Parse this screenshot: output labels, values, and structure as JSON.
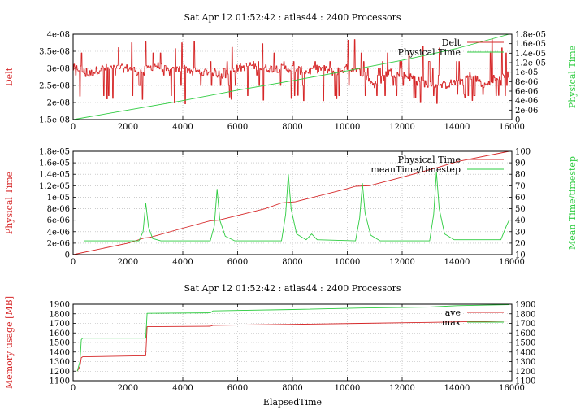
{
  "chart_data": [
    {
      "type": "line",
      "title": "Sat Apr 12 01:52:42 : atlas44 : 2400 Processors",
      "xlabel": "",
      "xlim": [
        0,
        16000
      ],
      "xticks": [
        0,
        2000,
        4000,
        6000,
        8000,
        10000,
        12000,
        14000,
        16000
      ],
      "ylabel": "Delt",
      "ylim": [
        1.5e-08,
        4e-08
      ],
      "yticks": [
        "1.5e-08",
        "2e-08",
        "2.5e-08",
        "3e-08",
        "3.5e-08",
        "4e-08"
      ],
      "ylabel2": "Physical Time",
      "ylim2": [
        0,
        1.8e-05
      ],
      "yticks2": [
        "0",
        "2e-06",
        "4e-06",
        "6e-06",
        "8e-06",
        "1e-05",
        "1.2e-05",
        "1.4e-05",
        "1.6e-05",
        "1.8e-05"
      ],
      "grid": true,
      "legend": "top-right",
      "colors": {
        "delt": "#d62728",
        "physical": "#2ecc40"
      },
      "series": [
        {
          "name": "Delt",
          "axis": "left",
          "style": "noisy-steps",
          "x": [
            0,
            250,
            500,
            1000,
            1500,
            2000,
            2500,
            3000,
            3500,
            4000,
            4500,
            5000,
            5500,
            6000,
            6500,
            7000,
            7500,
            8000,
            8500,
            9000,
            9500,
            10000,
            10500,
            11000,
            11500,
            12000,
            12500,
            13000,
            13500,
            14000,
            14500,
            15000,
            15500,
            15900
          ],
          "y": [
            3e-08,
            3e-08,
            2.8e-08,
            3e-08,
            3e-08,
            3e-08,
            2.9e-08,
            3.1e-08,
            2.9e-08,
            3e-08,
            2.9e-08,
            2.9e-08,
            2.8e-08,
            3e-08,
            3.1e-08,
            3e-08,
            3e-08,
            3e-08,
            2.9e-08,
            3e-08,
            2.9e-08,
            3e-08,
            2.9e-08,
            2.5e-08,
            2.9e-08,
            2.8e-08,
            2.7e-08,
            2.5e-08,
            2.5e-08,
            2.6e-08,
            2.8e-08,
            2.5e-08,
            2.7e-08,
            2.8e-08
          ],
          "range_min": 1.95e-08,
          "range_max": 3.85e-08
        },
        {
          "name": "Physical Time",
          "axis": "right",
          "x": [
            0,
            2000,
            4000,
            6000,
            8000,
            10000,
            12000,
            14000,
            15900
          ],
          "y": [
            0,
            2e-06,
            4e-06,
            6.2e-06,
            8.2e-06,
            1.03e-05,
            1.25e-05,
            1.5e-05,
            1.8e-05
          ]
        }
      ]
    },
    {
      "type": "line",
      "title": "",
      "xlabel": "",
      "xlim": [
        0,
        16000
      ],
      "xticks": [
        0,
        2000,
        4000,
        6000,
        8000,
        10000,
        12000,
        14000,
        16000
      ],
      "ylabel": "Physical Time",
      "ylim": [
        0,
        1.8e-05
      ],
      "yticks": [
        "0",
        "2e-06",
        "4e-06",
        "6e-06",
        "8e-06",
        "1e-05",
        "1.2e-05",
        "1.4e-05",
        "1.6e-05",
        "1.8e-05"
      ],
      "ylabel2": "Mean Time/timestep",
      "ylim2": [
        10,
        100
      ],
      "yticks2": [
        "10",
        "20",
        "30",
        "40",
        "50",
        "60",
        "70",
        "80",
        "90",
        "100"
      ],
      "grid": true,
      "legend": "top-right",
      "colors": {
        "physical": "#d62728",
        "mean": "#2ecc40"
      },
      "series": [
        {
          "name": "Physical Time",
          "axis": "left",
          "x": [
            0,
            2000,
            2600,
            2800,
            4000,
            5000,
            5300,
            7000,
            7600,
            8100,
            10000,
            10300,
            10800,
            12000,
            13000,
            13300,
            14000,
            15900
          ],
          "y": [
            0,
            2e-06,
            2.9e-06,
            3e-06,
            4.6e-06,
            5.9e-06,
            6e-06,
            8e-06,
            9e-06,
            9.2e-06,
            1.15e-05,
            1.19e-05,
            1.2e-05,
            1.35e-05,
            1.48e-05,
            1.52e-05,
            1.62e-05,
            1.8e-05
          ]
        },
        {
          "name": "meanTime/timestep",
          "axis": "right",
          "x": [
            400,
            2400,
            2550,
            2650,
            2750,
            2900,
            3200,
            5000,
            5150,
            5250,
            5350,
            5550,
            5900,
            7600,
            7750,
            7850,
            7950,
            8150,
            8500,
            8700,
            8900,
            10300,
            10450,
            10550,
            10650,
            10850,
            11200,
            13000,
            13150,
            13250,
            13350,
            13550,
            13900,
            15600,
            15800,
            15900
          ],
          "y": [
            22,
            22,
            30,
            55,
            34,
            24,
            22,
            22,
            35,
            67,
            40,
            26,
            22,
            22,
            45,
            80,
            50,
            28,
            23,
            28,
            23,
            22,
            42,
            72,
            46,
            27,
            22,
            22,
            45,
            82,
            50,
            28,
            23,
            23,
            35,
            40
          ]
        }
      ]
    },
    {
      "type": "line",
      "title": "Sat Apr 12 01:52:42 : atlas44 : 2400 Processors",
      "xlabel": "ElapsedTime",
      "xlim": [
        0,
        16000
      ],
      "xticks": [
        0,
        2000,
        4000,
        6000,
        8000,
        10000,
        12000,
        14000,
        16000
      ],
      "ylabel": "Memory usage [MB]",
      "ylim": [
        1100,
        1900
      ],
      "yticks": [
        "1100",
        "1200",
        "1300",
        "1400",
        "1500",
        "1600",
        "1700",
        "1800",
        "1900"
      ],
      "ylabel2": "",
      "ylim2": [
        1100,
        1900
      ],
      "yticks2": [
        "1100",
        "1200",
        "1300",
        "1400",
        "1500",
        "1600",
        "1700",
        "1800",
        "1900"
      ],
      "grid": true,
      "legend": "top-right",
      "colors": {
        "ave": "#d62728",
        "max": "#2ecc40"
      },
      "series": [
        {
          "name": "ave",
          "x": [
            150,
            250,
            300,
            350,
            2400,
            2650,
            2700,
            5000,
            5100,
            8000,
            10500,
            13000,
            15900
          ],
          "y": [
            1200,
            1250,
            1340,
            1350,
            1360,
            1360,
            1665,
            1670,
            1680,
            1690,
            1700,
            1710,
            1725
          ]
        },
        {
          "name": "max",
          "x": [
            150,
            250,
            300,
            350,
            2400,
            2650,
            2700,
            5000,
            5100,
            8000,
            10500,
            13000,
            14000,
            15900
          ],
          "y": [
            1200,
            1300,
            1530,
            1545,
            1545,
            1545,
            1805,
            1810,
            1830,
            1845,
            1860,
            1870,
            1885,
            1895
          ]
        }
      ]
    }
  ]
}
